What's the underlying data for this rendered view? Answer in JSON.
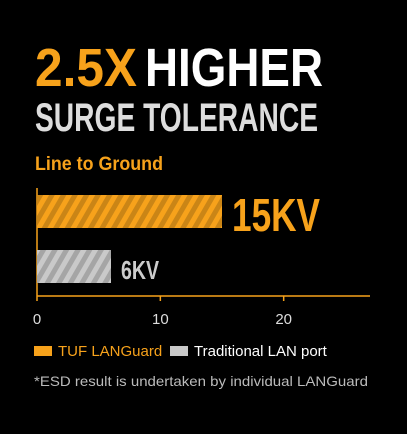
{
  "chart_data": {
    "type": "bar",
    "orientation": "horizontal",
    "title_accent": "2.5X",
    "title": "HIGHER",
    "subtitle": "SURGE TOLERANCE",
    "label": "Line to Ground",
    "categories": [
      null
    ],
    "series": [
      {
        "name": "TUF LANGuard",
        "color": "#f7a21b",
        "label_color": "#f7a21b",
        "values": [
          15
        ],
        "value_labels": [
          "15KV"
        ]
      },
      {
        "name": "Traditional LAN port",
        "color": "#c9c9c9",
        "label_color": "#ffffff",
        "values": [
          6
        ],
        "value_labels": [
          "6KV"
        ]
      }
    ],
    "xlim": [
      0,
      27
    ],
    "xticks": [
      0,
      10,
      20
    ],
    "grid": false,
    "legend": "bottom",
    "note": "*ESD result is undertaken by individual LANGuard"
  }
}
